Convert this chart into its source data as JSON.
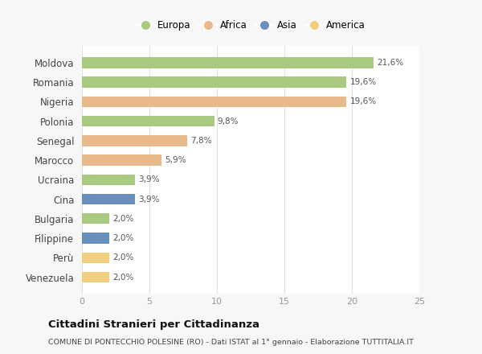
{
  "countries": [
    "Moldova",
    "Romania",
    "Nigeria",
    "Polonia",
    "Senegal",
    "Marocco",
    "Ucraina",
    "Cina",
    "Bulgaria",
    "Filippine",
    "Perù",
    "Venezuela"
  ],
  "values": [
    21.6,
    19.6,
    19.6,
    9.8,
    7.8,
    5.9,
    3.9,
    3.9,
    2.0,
    2.0,
    2.0,
    2.0
  ],
  "labels": [
    "21,6%",
    "19,6%",
    "19,6%",
    "9,8%",
    "7,8%",
    "5,9%",
    "3,9%",
    "3,9%",
    "2,0%",
    "2,0%",
    "2,0%",
    "2,0%"
  ],
  "continents": [
    "Europa",
    "Europa",
    "Africa",
    "Europa",
    "Africa",
    "Africa",
    "Europa",
    "Asia",
    "Europa",
    "Asia",
    "America",
    "America"
  ],
  "colors": {
    "Europa": "#a8c97f",
    "Africa": "#e8b98a",
    "Asia": "#6a8fbd",
    "America": "#f0d080"
  },
  "xlim": [
    0,
    25
  ],
  "xticks": [
    0,
    5,
    10,
    15,
    20,
    25
  ],
  "xtick_labels": [
    "0",
    "5",
    "10",
    "15",
    "20",
    "25"
  ],
  "title": "Cittadini Stranieri per Cittadinanza",
  "subtitle": "COMUNE DI PONTECCHIO POLESINE (RO) - Dati ISTAT al 1° gennaio - Elaborazione TUTTITALIA.IT",
  "background_color": "#f7f7f7",
  "bar_background": "#ffffff"
}
